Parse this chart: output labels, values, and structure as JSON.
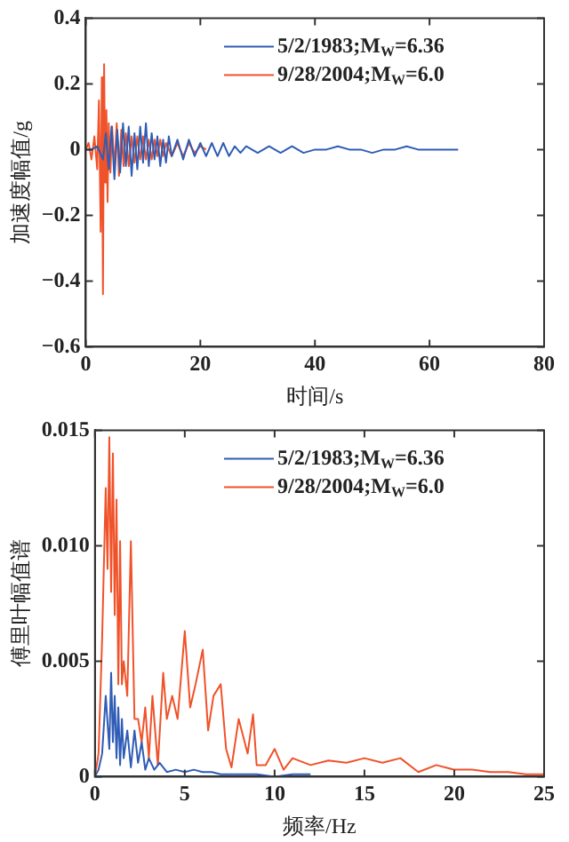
{
  "chart_data": [
    {
      "type": "line",
      "xlabel": "时间/s",
      "ylabel": "加速度幅值/g",
      "xlim": [
        0,
        80
      ],
      "xticks": [
        0,
        20,
        40,
        60,
        80
      ],
      "ylim": [
        -0.6,
        0.4
      ],
      "yticks": [
        {
          "value": -0.6,
          "label": "−0.6"
        },
        {
          "value": -0.4,
          "label": "−0.4"
        },
        {
          "value": -0.2,
          "label": "−0.2"
        },
        0,
        0.2,
        0.4
      ],
      "grid": false,
      "legend": "top right",
      "marker": "none",
      "line_style": "solid",
      "series": [
        {
          "name": "5/2/1983;M$_{W}$=6.36",
          "color": "#2f5cb5",
          "x": [
            0,
            1,
            2,
            3,
            3.5,
            4,
            4.5,
            5,
            5.5,
            6,
            6.5,
            7,
            7.5,
            8,
            8.5,
            9,
            9.5,
            10,
            10.5,
            11,
            11.5,
            12,
            12.5,
            13,
            13.5,
            14,
            14.5,
            15,
            16,
            17,
            18,
            19,
            20,
            21,
            22,
            23,
            24,
            25,
            26,
            27,
            28,
            30,
            32,
            34,
            36,
            38,
            40,
            42,
            44,
            46,
            48,
            50,
            52,
            54,
            56,
            58,
            60,
            62,
            65
          ],
          "values": [
            0,
            0,
            0.01,
            -0.03,
            0.05,
            -0.06,
            0.07,
            -0.09,
            0.06,
            -0.07,
            0.08,
            -0.05,
            0.07,
            -0.08,
            0.05,
            -0.06,
            0.07,
            -0.04,
            0.08,
            -0.05,
            0.05,
            -0.03,
            0.04,
            -0.05,
            0.03,
            -0.04,
            0.04,
            -0.02,
            0.03,
            -0.03,
            0.03,
            -0.02,
            0.02,
            -0.02,
            0.02,
            -0.02,
            0.02,
            -0.02,
            0.01,
            -0.01,
            0.01,
            -0.01,
            0.01,
            -0.01,
            0.01,
            -0.01,
            0,
            0,
            0.01,
            0,
            0,
            -0.01,
            0,
            0,
            0.01,
            0,
            0,
            0,
            0
          ]
        },
        {
          "name": "9/28/2004;M$_{W}$=6.0",
          "color": "#f0522a",
          "x": [
            0,
            0.5,
            1,
            1.5,
            2,
            2.3,
            2.6,
            2.8,
            3.0,
            3.2,
            3.4,
            3.6,
            3.8,
            4.0,
            4.3,
            4.6,
            5,
            5.4,
            5.8,
            6.2,
            6.6,
            7,
            7.5,
            8,
            8.5,
            9,
            9.5,
            10,
            10.5,
            11,
            11.5,
            12,
            12.5,
            13,
            13.5,
            14,
            15,
            16,
            17,
            18,
            19,
            20,
            21
          ],
          "values": [
            0,
            0.02,
            -0.03,
            0.04,
            -0.06,
            0.15,
            -0.25,
            0.22,
            -0.44,
            0.26,
            -0.1,
            0.12,
            -0.16,
            0.08,
            -0.07,
            0.07,
            -0.06,
            0.08,
            -0.08,
            0.06,
            -0.05,
            0.05,
            -0.05,
            0.04,
            -0.04,
            0.04,
            -0.03,
            0.04,
            -0.03,
            0.03,
            -0.03,
            0.03,
            -0.02,
            0.03,
            -0.02,
            0.02,
            -0.02,
            0.02,
            -0.02,
            0.02,
            -0.01,
            0.01,
            0
          ]
        }
      ]
    },
    {
      "type": "line",
      "xlabel": "频率/Hz",
      "ylabel": "傅里叶幅值谱",
      "xlim": [
        0,
        25
      ],
      "xticks": [
        0,
        5,
        10,
        15,
        20,
        25
      ],
      "ylim": [
        0,
        0.015
      ],
      "yticks": [
        0,
        0.005,
        {
          "value": 0.01,
          "label": "0.010"
        },
        0.015
      ],
      "grid": false,
      "legend": "top right",
      "marker": "none",
      "line_style": "solid",
      "series": [
        {
          "name": "5/2/1983;M$_{W}$=6.36",
          "color": "#2f5cb5",
          "x": [
            0,
            0.2,
            0.4,
            0.6,
            0.8,
            0.9,
            1.0,
            1.1,
            1.2,
            1.3,
            1.4,
            1.5,
            1.6,
            1.8,
            2.0,
            2.2,
            2.4,
            2.6,
            2.8,
            3.0,
            3.3,
            3.6,
            4.0,
            4.5,
            5,
            5.5,
            6,
            6.5,
            7,
            8,
            9,
            10,
            11,
            12
          ],
          "values": [
            0,
            0.0003,
            0.001,
            0.0035,
            0.0012,
            0.0045,
            0.0015,
            0.0035,
            0.0008,
            0.003,
            0.0005,
            0.0025,
            0.0008,
            0.002,
            0.0004,
            0.002,
            0.0006,
            0.0015,
            0.0003,
            0.0008,
            0.0003,
            0.0006,
            0.0002,
            0.0003,
            0.0002,
            0.0003,
            0.0002,
            0.0002,
            0.0001,
            0.0001,
            0.0001,
            0,
            0.0001,
            0.0001
          ]
        },
        {
          "name": "9/28/2004;M$_{W}$=6.0",
          "color": "#f0522a",
          "x": [
            0,
            0.2,
            0.4,
            0.6,
            0.7,
            0.8,
            0.9,
            1.0,
            1.1,
            1.2,
            1.3,
            1.4,
            1.5,
            1.6,
            1.8,
            2.0,
            2.2,
            2.4,
            2.6,
            2.8,
            3.0,
            3.2,
            3.5,
            3.8,
            4.0,
            4.3,
            4.6,
            5.0,
            5.3,
            5.6,
            6.0,
            6.3,
            6.6,
            7.0,
            7.3,
            7.6,
            8.0,
            8.5,
            8.8,
            9.0,
            9.5,
            10,
            10.5,
            11,
            12,
            13,
            14,
            15,
            16,
            17,
            18,
            19,
            20,
            21,
            22,
            23,
            24,
            25
          ],
          "values": [
            0,
            0.001,
            0.006,
            0.0125,
            0.009,
            0.0147,
            0.008,
            0.014,
            0.007,
            0.012,
            0.004,
            0.0102,
            0.004,
            0.005,
            0.0035,
            0.0102,
            0.0025,
            0.0025,
            0.0015,
            0.003,
            0.0008,
            0.0035,
            0.0005,
            0.0045,
            0.0025,
            0.0035,
            0.0025,
            0.0063,
            0.003,
            0.004,
            0.0055,
            0.002,
            0.0035,
            0.004,
            0.0012,
            0.0004,
            0.0025,
            0.001,
            0.0027,
            0.0005,
            0.0005,
            0.0012,
            0.0003,
            0.0008,
            0.0005,
            0.0007,
            0.0006,
            0.0008,
            0.0006,
            0.0008,
            0.0002,
            0.0005,
            0.0003,
            0.0003,
            0.0002,
            0.0002,
            0.0001,
            0.0001
          ]
        }
      ]
    }
  ]
}
